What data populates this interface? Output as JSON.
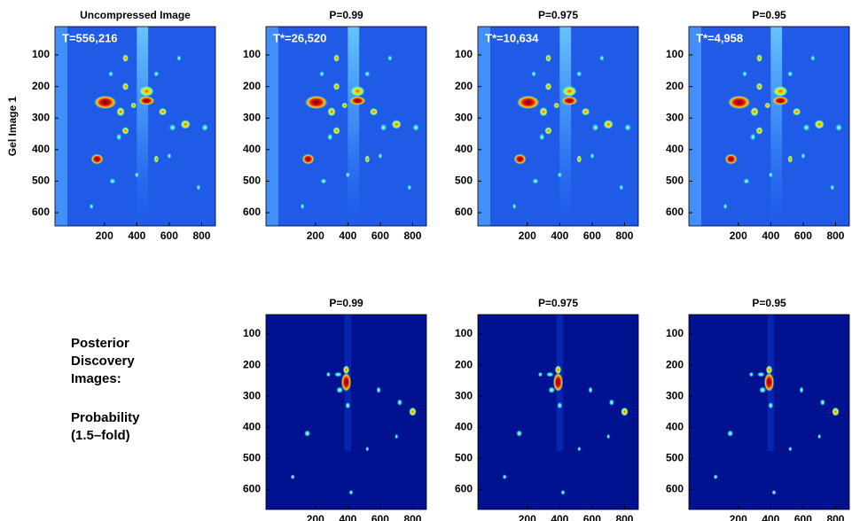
{
  "rows": [
    {
      "label": "Gel Image 1",
      "panels": [
        {
          "title": "Uncompressed Image",
          "annotation": "T=556,216",
          "style": "gel",
          "xlim": [
            -105,
            885
          ],
          "ylim": [
            10,
            642
          ],
          "xticks": [
            200,
            400,
            600,
            800
          ],
          "yticks": [
            100,
            200,
            300,
            400,
            500,
            600
          ]
        },
        {
          "title": "P=0.99",
          "annotation": "T*=26,520",
          "style": "gel",
          "xlim": [
            -105,
            885
          ],
          "ylim": [
            10,
            642
          ],
          "xticks": [
            200,
            400,
            600,
            800
          ],
          "yticks": [
            100,
            200,
            300,
            400,
            500,
            600
          ]
        },
        {
          "title": "P=0.975",
          "annotation": "T*=10,634",
          "style": "gel",
          "xlim": [
            -105,
            885
          ],
          "ylim": [
            10,
            642
          ],
          "xticks": [
            200,
            400,
            600,
            800
          ],
          "yticks": [
            100,
            200,
            300,
            400,
            500,
            600
          ]
        },
        {
          "title": "P=0.95",
          "annotation": "T*=4,958",
          "style": "gel",
          "xlim": [
            -105,
            885
          ],
          "ylim": [
            10,
            642
          ],
          "xticks": [
            200,
            400,
            600,
            800
          ],
          "yticks": [
            100,
            200,
            300,
            400,
            500,
            600
          ]
        }
      ]
    },
    {
      "label_lines": [
        "Posterior",
        "Discovery",
        "Images:",
        "Probability",
        "(1.5–fold)"
      ],
      "panels": [
        {
          "title": "P=0.99",
          "style": "posterior",
          "xlim": [
            -105,
            885
          ],
          "ylim": [
            37,
            665
          ],
          "xticks": [
            200,
            400,
            600,
            800
          ],
          "yticks": [
            100,
            200,
            300,
            400,
            500,
            600
          ]
        },
        {
          "title": "P=0.975",
          "style": "posterior",
          "xlim": [
            -105,
            885
          ],
          "ylim": [
            37,
            665
          ],
          "xticks": [
            200,
            400,
            600,
            800
          ],
          "yticks": [
            100,
            200,
            300,
            400,
            500,
            600
          ]
        },
        {
          "title": "P=0.95",
          "style": "posterior",
          "xlim": [
            -105,
            885
          ],
          "ylim": [
            37,
            665
          ],
          "xticks": [
            200,
            400,
            600,
            800
          ],
          "yticks": [
            100,
            200,
            300,
            400,
            500,
            600
          ]
        }
      ]
    }
  ]
}
